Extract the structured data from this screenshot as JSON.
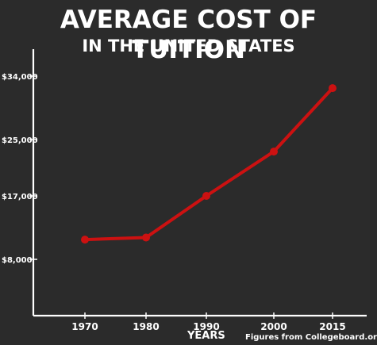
{
  "chart_data": {
    "type": "line",
    "title": "AVERAGE COST OF TUITION",
    "subtitle": "IN THE UNITED STATES",
    "xlabel": "YEARS",
    "ylabel": "",
    "source_note": "Figures from Collegeboard.org",
    "y_ticks": [
      {
        "value": 8000,
        "label": "$8,000"
      },
      {
        "value": 17000,
        "label": "$17,000"
      },
      {
        "value": 25000,
        "label": "$25,000"
      },
      {
        "value": 34000,
        "label": "$34,000"
      }
    ],
    "ylim": [
      0,
      37000
    ],
    "grid": false,
    "series": [
      {
        "points": [
          {
            "x": "1970",
            "y": 10800
          },
          {
            "x": "1980",
            "y": 11100
          },
          {
            "x": "1990",
            "y": 17000
          },
          {
            "x": "2000",
            "y": 23300
          },
          {
            "x": "2015",
            "y": 32300
          }
        ]
      }
    ],
    "colors": {
      "line": "#cc1111",
      "axis": "#ffffff",
      "background": "#2b2b2b"
    }
  }
}
